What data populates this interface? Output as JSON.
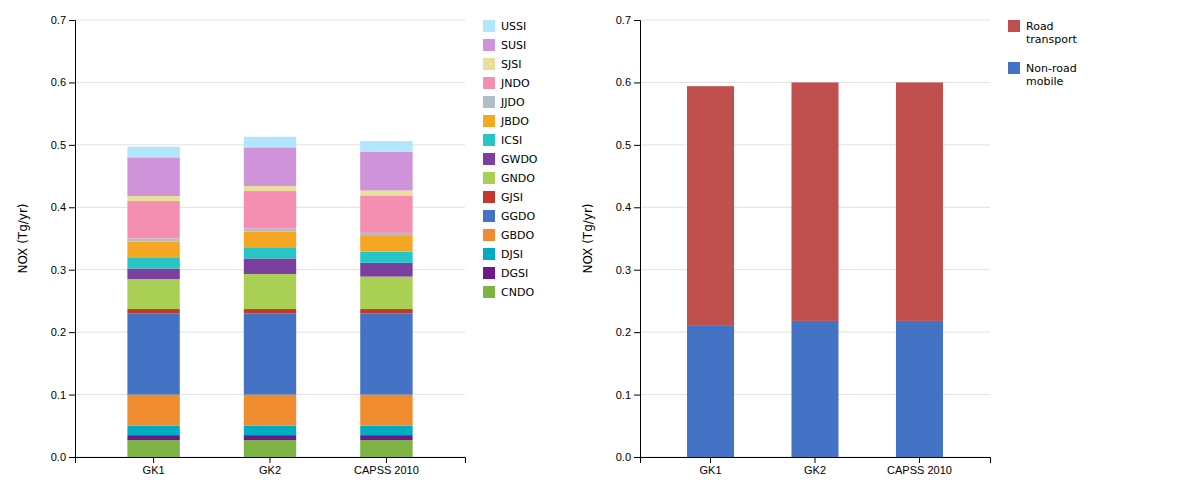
{
  "chart_data": [
    {
      "type": "bar",
      "stacked": true,
      "grid": true,
      "legend": "right",
      "ylabel": "NOX (Tg/yr)",
      "categories": [
        "GK1",
        "GK2",
        "CAPSS 2010"
      ],
      "ylim": [
        0,
        0.7
      ],
      "yticks": [
        {
          "value": 0,
          "label": "0.0"
        },
        0.1,
        0.2,
        0.3,
        0.4,
        0.5,
        0.6,
        0.7
      ],
      "series": [
        {
          "name": "CNDO",
          "color": "#7cb342",
          "values": [
            0.027,
            0.027,
            0.027
          ]
        },
        {
          "name": "DGSI",
          "color": "#6a1a8a",
          "values": [
            0.008,
            0.008,
            0.008
          ]
        },
        {
          "name": "DJSI",
          "color": "#00acc1",
          "values": [
            0.015,
            0.015,
            0.015
          ]
        },
        {
          "name": "GBDO",
          "color": "#ef8c2f",
          "values": [
            0.05,
            0.05,
            0.05
          ]
        },
        {
          "name": "GGDO",
          "color": "#4472c4",
          "values": [
            0.13,
            0.13,
            0.13
          ]
        },
        {
          "name": "GJSI",
          "color": "#c0392b",
          "values": [
            0.007,
            0.007,
            0.007
          ]
        },
        {
          "name": "GNDO",
          "color": "#a9cf54",
          "values": [
            0.048,
            0.056,
            0.052
          ]
        },
        {
          "name": "GWDO",
          "color": "#7b3fa0",
          "values": [
            0.017,
            0.025,
            0.022
          ]
        },
        {
          "name": "ICSI",
          "color": "#26c6c6",
          "values": [
            0.018,
            0.018,
            0.018
          ]
        },
        {
          "name": "JBDO",
          "color": "#f5a623",
          "values": [
            0.025,
            0.025,
            0.025
          ]
        },
        {
          "name": "JJDO",
          "color": "#b0bec5",
          "values": [
            0.005,
            0.005,
            0.005
          ]
        },
        {
          "name": "JNDO",
          "color": "#f48fb1",
          "values": [
            0.06,
            0.06,
            0.06
          ]
        },
        {
          "name": "SJSI",
          "color": "#e8e099",
          "values": [
            0.008,
            0.008,
            0.008
          ]
        },
        {
          "name": "SUSI",
          "color": "#ce93d8",
          "values": [
            0.062,
            0.062,
            0.062
          ]
        },
        {
          "name": "USSI",
          "color": "#b3e5fc",
          "values": [
            0.017,
            0.017,
            0.017
          ]
        }
      ]
    },
    {
      "type": "bar",
      "stacked": true,
      "grid": true,
      "legend": "right",
      "ylabel": "NOX (Tg/yr)",
      "categories": [
        "GK1",
        "GK2",
        "CAPSS 2010"
      ],
      "ylim": [
        0,
        0.7
      ],
      "yticks": [
        {
          "value": 0,
          "label": "0.0"
        },
        0.1,
        0.2,
        0.3,
        0.4,
        0.5,
        0.6,
        0.7
      ],
      "series": [
        {
          "name": "Non-road\nmobile",
          "color": "#4472c4",
          "values": [
            0.21,
            0.218,
            0.218
          ]
        },
        {
          "name": "Road\ntransport",
          "color": "#c0504d",
          "values": [
            0.384,
            0.382,
            0.382
          ]
        }
      ]
    }
  ]
}
